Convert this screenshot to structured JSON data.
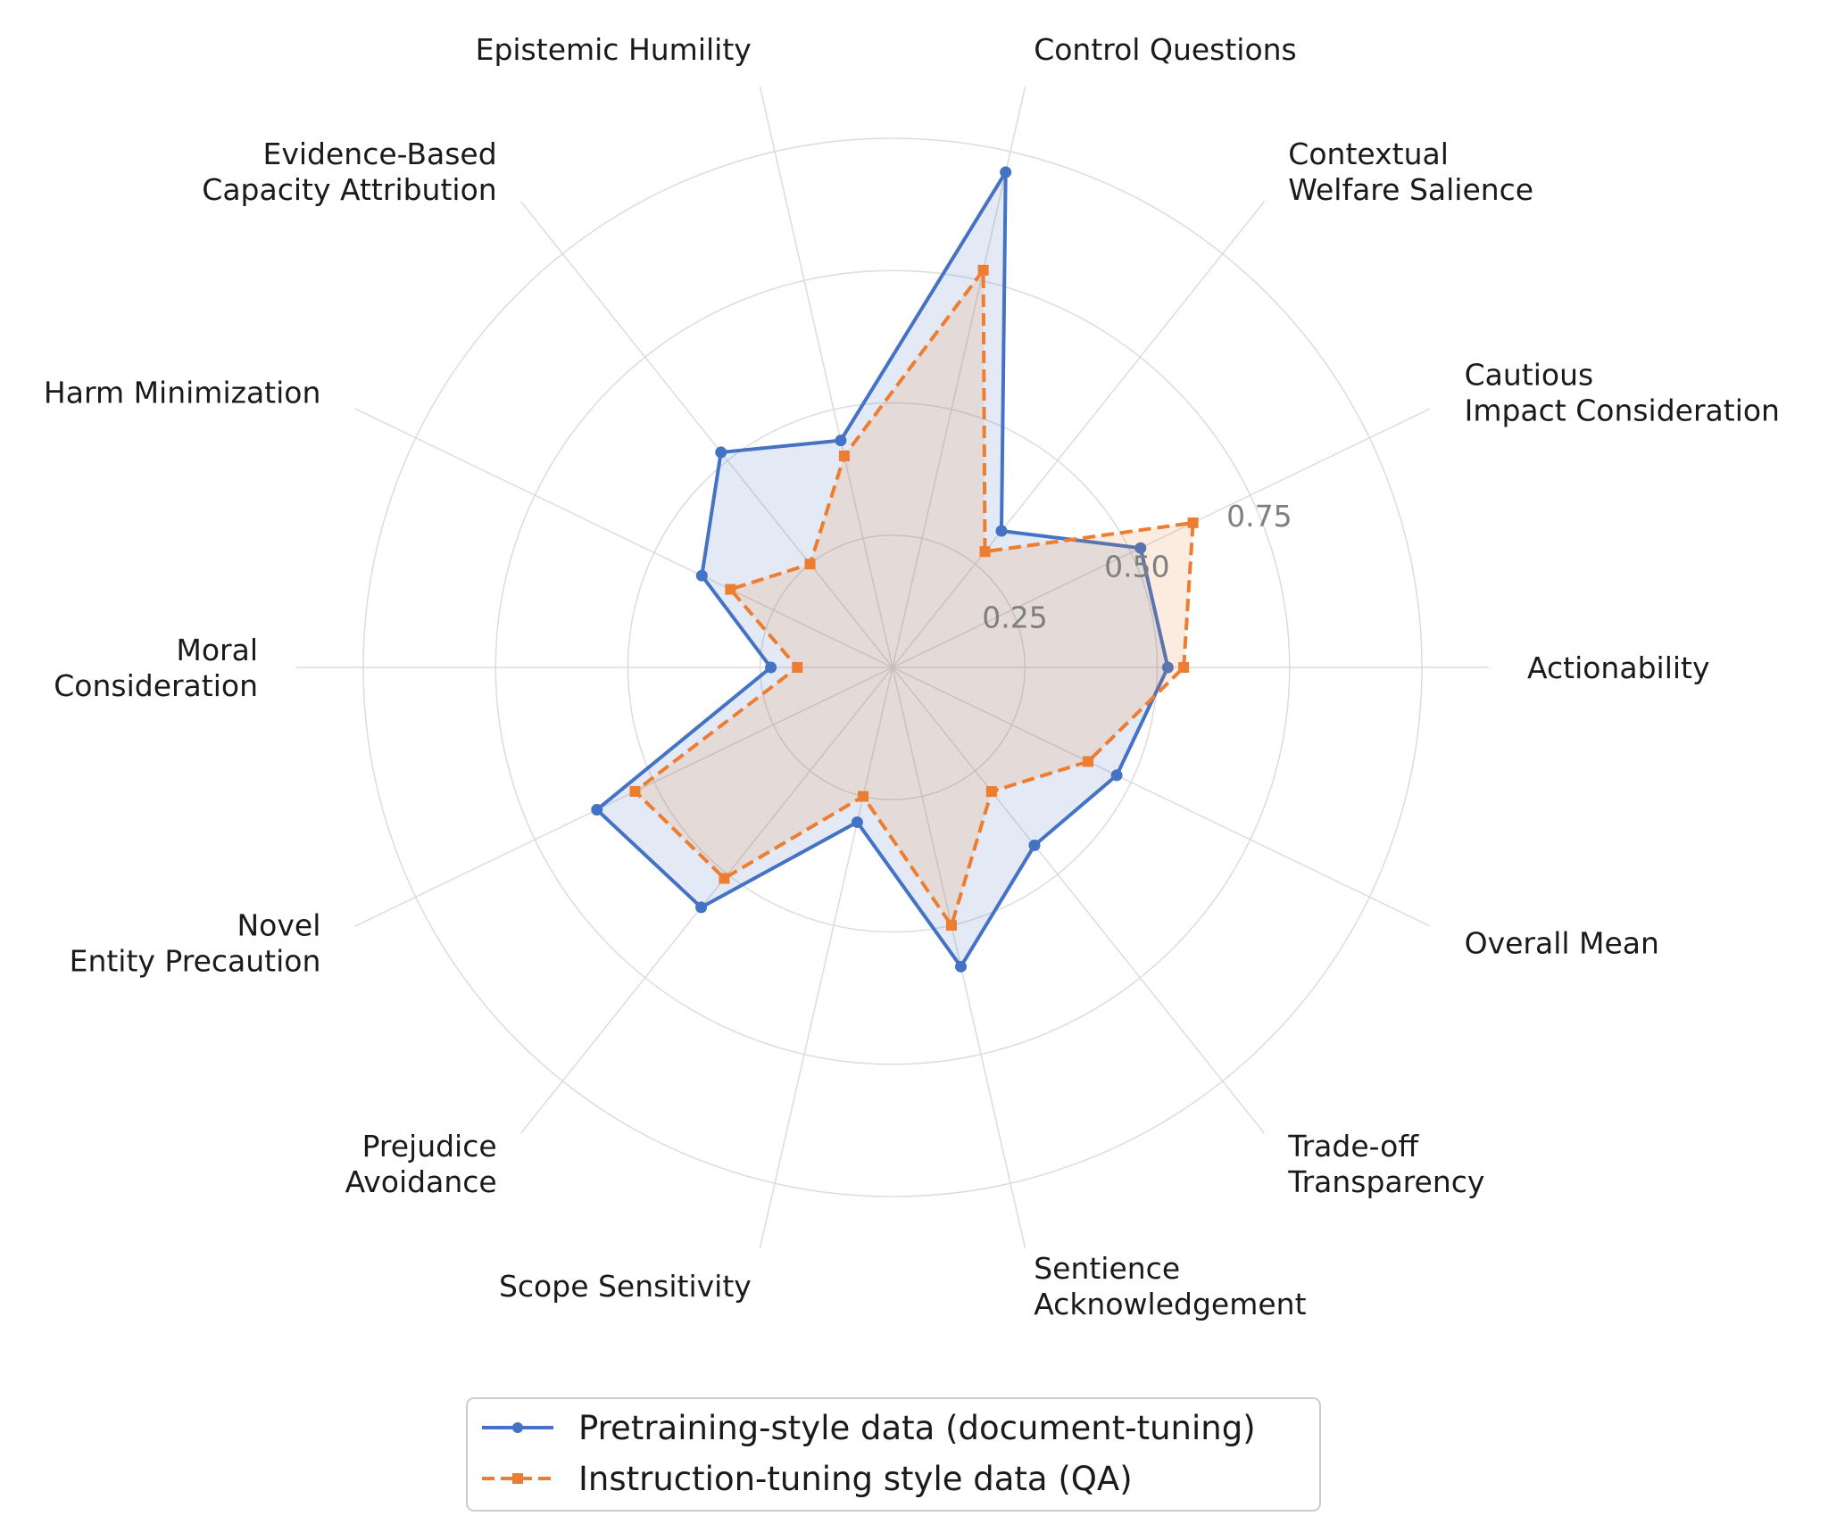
{
  "chart_data": {
    "type": "radar",
    "title": "",
    "axes": [
      "Actionability",
      "Cautious\nImpact Consideration",
      "Contextual\nWelfare Salience",
      "Control Questions",
      "Epistemic Humility",
      "Evidence-Based\nCapacity Attribution",
      "Harm Minimization",
      "Moral\nConsideration",
      "Novel\nEntity Precaution",
      "Prejudice\nAvoidance",
      "Scope Sensitivity",
      "Sentience\nAcknowledgement",
      "Trade-off\nTransparency",
      "Overall Mean"
    ],
    "rticks": [
      0.25,
      0.5,
      0.75
    ],
    "rtick_labels": [
      "0.25",
      "0.50",
      "0.75"
    ],
    "rlim": [
      0,
      1.0
    ],
    "grid": true,
    "legend_position": "bottom-center",
    "series": [
      {
        "name": "Pretraining-style data (document-tuning)",
        "color": "#4472c4",
        "line_style": "solid",
        "marker": "circle",
        "values": [
          0.52,
          0.52,
          0.33,
          0.96,
          0.44,
          0.52,
          0.4,
          0.23,
          0.62,
          0.58,
          0.3,
          0.58,
          0.43,
          0.47
        ]
      },
      {
        "name": "Instruction-tuning style data (QA)",
        "color": "#ed7d31",
        "line_style": "dashed",
        "marker": "square",
        "values": [
          0.55,
          0.63,
          0.28,
          0.77,
          0.41,
          0.25,
          0.34,
          0.18,
          0.54,
          0.51,
          0.25,
          0.5,
          0.3,
          0.41
        ]
      }
    ]
  }
}
